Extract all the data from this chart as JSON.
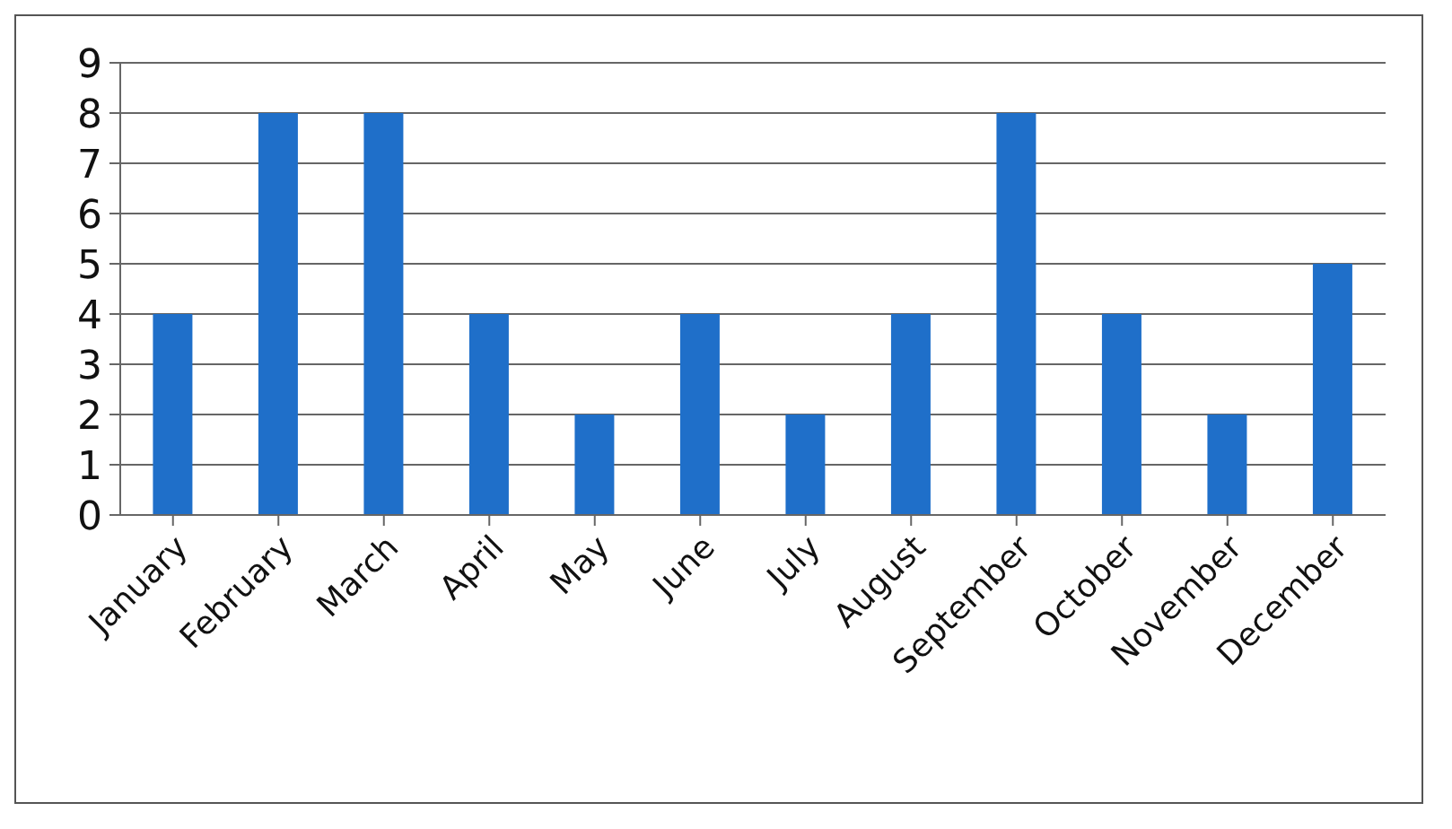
{
  "chart_data": {
    "type": "bar",
    "categories": [
      "January",
      "February",
      "March",
      "April",
      "May",
      "June",
      "July",
      "August",
      "September",
      "October",
      "November",
      "December"
    ],
    "values": [
      4,
      8,
      8,
      4,
      2,
      4,
      2,
      4,
      8,
      4,
      2,
      5
    ],
    "color": "#1f6fc9",
    "ylim": [
      0,
      9
    ],
    "yticks": [
      0,
      1,
      2,
      3,
      4,
      5,
      6,
      7,
      8,
      9
    ],
    "grid": "y"
  }
}
